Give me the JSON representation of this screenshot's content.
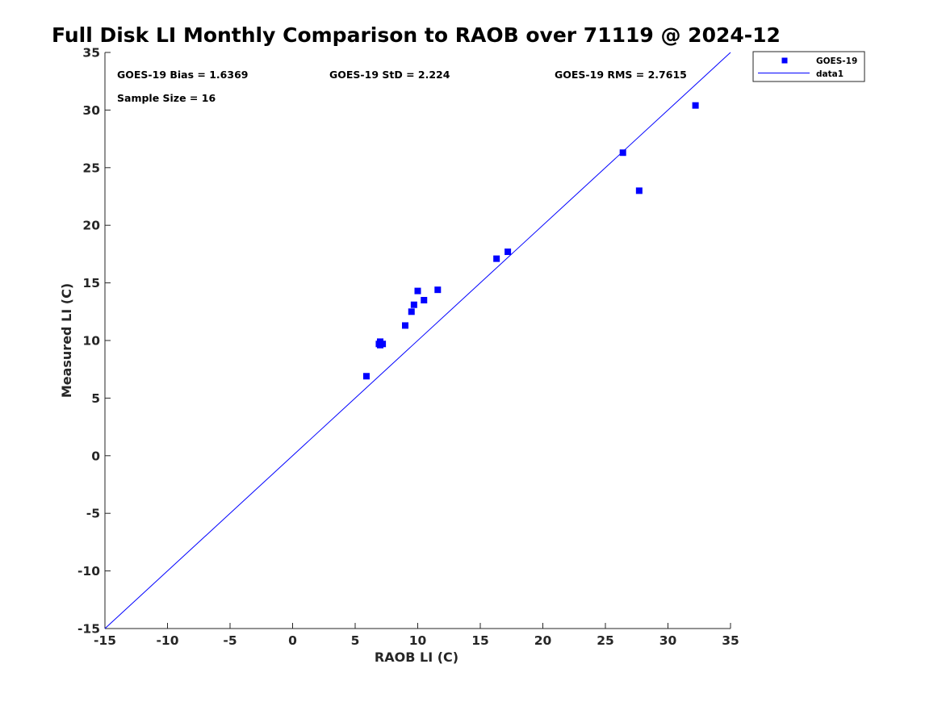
{
  "chart_data": {
    "type": "scatter",
    "title": "Full Disk LI Monthly Comparison to RAOB over 71119 @ 2024-12",
    "xlabel": "RAOB LI (C)",
    "ylabel": "Measured LI (C)",
    "xlim": [
      -15,
      35
    ],
    "ylim": [
      -15,
      35
    ],
    "xticks": [
      "-15",
      "-10",
      "-5",
      "0",
      "5",
      "10",
      "15",
      "20",
      "25",
      "30",
      "35"
    ],
    "yticks": [
      "-15",
      "-10",
      "-5",
      "0",
      "5",
      "10",
      "15",
      "20",
      "25",
      "30",
      "35"
    ],
    "grid": false,
    "legend_position": "top-right (outside axes)",
    "annotations": {
      "bias": "GOES-19 Bias = 1.6369",
      "std": "GOES-19 StD = 2.224",
      "rms": "GOES-19 RMS = 2.7615",
      "sample_size": "Sample Size = 16"
    },
    "series": [
      {
        "name": "GOES-19",
        "kind": "scatter",
        "marker": "square",
        "color": "#0000ff",
        "points": [
          {
            "x": 5.9,
            "y": 6.9
          },
          {
            "x": 7.0,
            "y": 9.9
          },
          {
            "x": 7.0,
            "y": 9.6
          },
          {
            "x": 7.2,
            "y": 9.7
          },
          {
            "x": 9.0,
            "y": 11.3
          },
          {
            "x": 9.5,
            "y": 12.5
          },
          {
            "x": 9.7,
            "y": 13.1
          },
          {
            "x": 10.0,
            "y": 14.3
          },
          {
            "x": 10.5,
            "y": 13.5
          },
          {
            "x": 11.6,
            "y": 14.4
          },
          {
            "x": 16.3,
            "y": 17.1
          },
          {
            "x": 17.2,
            "y": 17.7
          },
          {
            "x": 26.4,
            "y": 26.3
          },
          {
            "x": 27.7,
            "y": 23.0
          },
          {
            "x": 32.2,
            "y": 30.4
          },
          {
            "x": 6.9,
            "y": 9.7
          }
        ]
      },
      {
        "name": "data1",
        "kind": "line",
        "color": "#0000ff",
        "points": [
          {
            "x": -15,
            "y": -15
          },
          {
            "x": 35,
            "y": 35
          }
        ]
      }
    ]
  }
}
